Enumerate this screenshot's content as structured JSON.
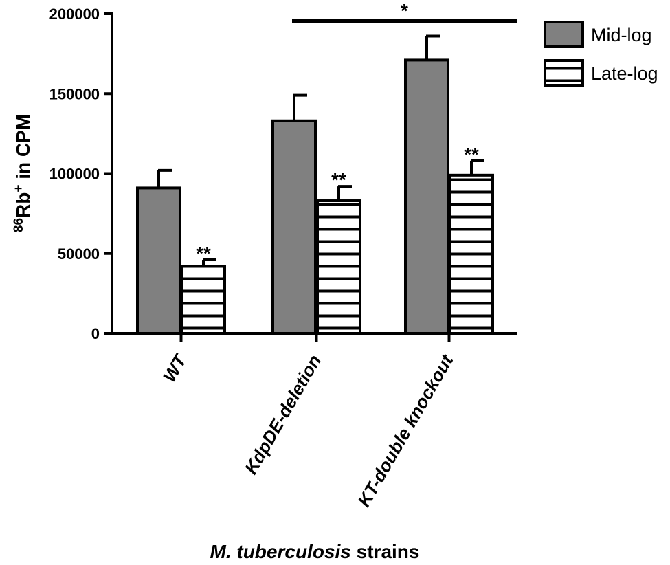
{
  "chart_data": {
    "type": "bar",
    "categories": [
      "WT",
      "KdpDE-deletion",
      "KT-double knockout"
    ],
    "series": [
      {
        "name": "Mid-log",
        "values": [
          91000,
          133000,
          171000
        ],
        "errors": [
          11000,
          16000,
          15000
        ],
        "fill": "#808080",
        "pattern": "solid"
      },
      {
        "name": "Late-log",
        "values": [
          42000,
          83000,
          99000
        ],
        "errors": [
          4000,
          9000,
          9000
        ],
        "fill": "#ffffff",
        "pattern": "horizontal-stripes"
      }
    ],
    "significance": [
      "**",
      "**",
      "**"
    ],
    "bracket": {
      "from_category": 1,
      "to_category": 2,
      "label": "*"
    },
    "ylim": [
      0,
      200000
    ],
    "yticks": [
      0,
      50000,
      100000,
      150000,
      200000
    ],
    "ylabel_main": "Rb",
    "ylabel_superscript_pre": "86",
    "ylabel_superscript_post": "+",
    "ylabel_suffix": " in CPM",
    "xlabel_italic": "M. tuberculosis",
    "xlabel_suffix": " strains",
    "legend_position": "top-right",
    "grid": false
  }
}
